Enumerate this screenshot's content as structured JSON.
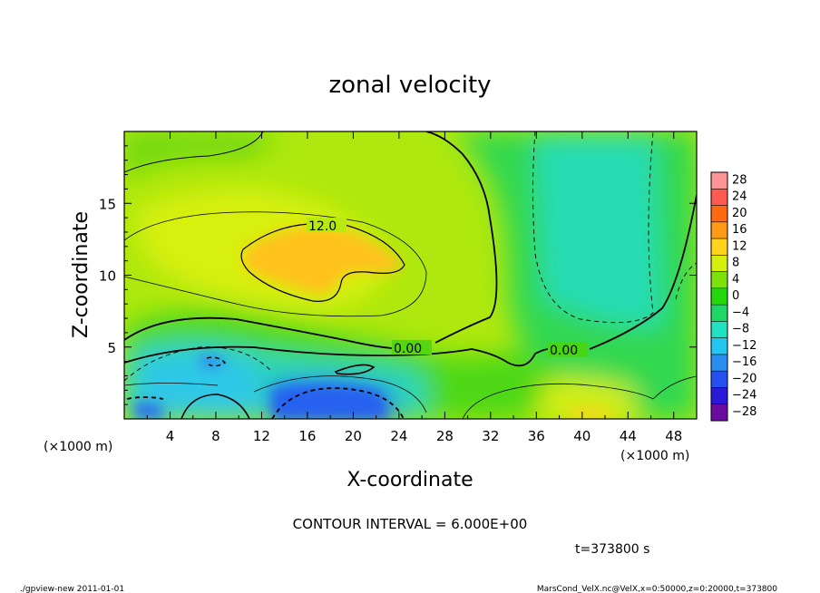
{
  "chart_data": {
    "type": "heatmap",
    "title": "zonal velocity",
    "xlabel": "X-coordinate",
    "ylabel": "Z-coordinate",
    "x_unit": "(×1000 m)",
    "y_unit": "(×1000 m)",
    "xlim": [
      0,
      50
    ],
    "ylim": [
      0,
      20
    ],
    "x_ticks": [
      4,
      8,
      12,
      16,
      20,
      24,
      28,
      32,
      36,
      40,
      44,
      48
    ],
    "y_ticks": [
      5,
      10,
      15
    ],
    "colorbar": {
      "levels": [
        -28,
        -24,
        -20,
        -16,
        -12,
        -8,
        -4,
        0,
        4,
        8,
        12,
        16,
        20,
        24,
        28
      ],
      "labels": [
        "28",
        "24",
        "20",
        "16",
        "12",
        "8",
        "4",
        "0",
        "−4",
        "−8",
        "−12",
        "−16",
        "−20",
        "−24",
        "−28"
      ],
      "colors": [
        "#6a0aa0",
        "#2a1ad8",
        "#2450f0",
        "#2a8ef0",
        "#22c6f0",
        "#20e2c2",
        "#1ed866",
        "#24d80a",
        "#7ee00c",
        "#d6f00e",
        "#ffd41a",
        "#ff9a16",
        "#ff6a10",
        "#ff5a50",
        "#ff9494"
      ]
    },
    "contour_labels": [
      "12.0",
      "0.00",
      "0.00"
    ],
    "contour_interval_text": "CONTOUR INTERVAL = 6.000E+00",
    "time_text": "t=373800 s"
  },
  "footer": {
    "left": "./gpview-new  2011-01-01",
    "right": "MarsCond_VelX.nc@VelX,x=0:50000,z=0:20000,t=373800"
  }
}
